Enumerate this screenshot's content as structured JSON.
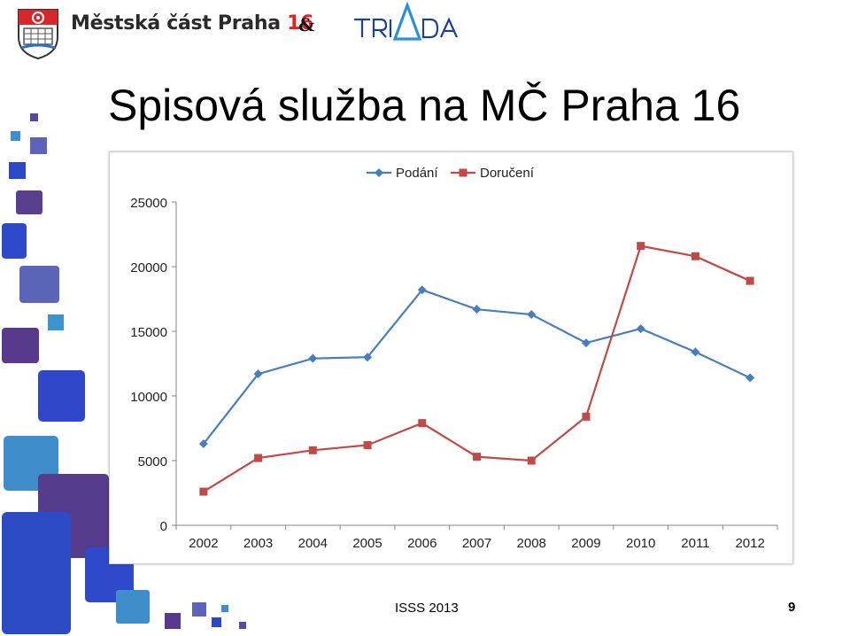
{
  "header": {
    "org_name_text": "Městská část Praha ",
    "org_name_number": "16",
    "amp": "&",
    "partner_logo_text": "TRIADA"
  },
  "slide": {
    "title": "Spisová služba na MČ Praha 16"
  },
  "footer": {
    "text": "ISSS 2013",
    "page": "9"
  },
  "colors": {
    "series_podani": "#4a7ebb",
    "series_doruceni": "#be4b48",
    "red_accent": "#e2202a"
  },
  "chart_data": {
    "type": "line",
    "title": "",
    "xlabel": "",
    "ylabel": "",
    "x": [
      "2002",
      "2003",
      "2004",
      "2005",
      "2006",
      "2007",
      "2008",
      "2009",
      "2010",
      "2011",
      "2012"
    ],
    "ylim": [
      0,
      25000
    ],
    "yticks": [
      0,
      5000,
      10000,
      15000,
      20000,
      25000
    ],
    "grid": false,
    "legend": "top-center",
    "series": [
      {
        "name": "Podání",
        "marker": "diamond",
        "values": [
          6300,
          11700,
          12900,
          13000,
          18200,
          16700,
          16300,
          14100,
          15200,
          13400,
          11400
        ]
      },
      {
        "name": "Doručení",
        "marker": "square",
        "values": [
          2600,
          5200,
          5800,
          6200,
          7900,
          5300,
          5000,
          8400,
          21600,
          20800,
          18900
        ]
      }
    ]
  }
}
